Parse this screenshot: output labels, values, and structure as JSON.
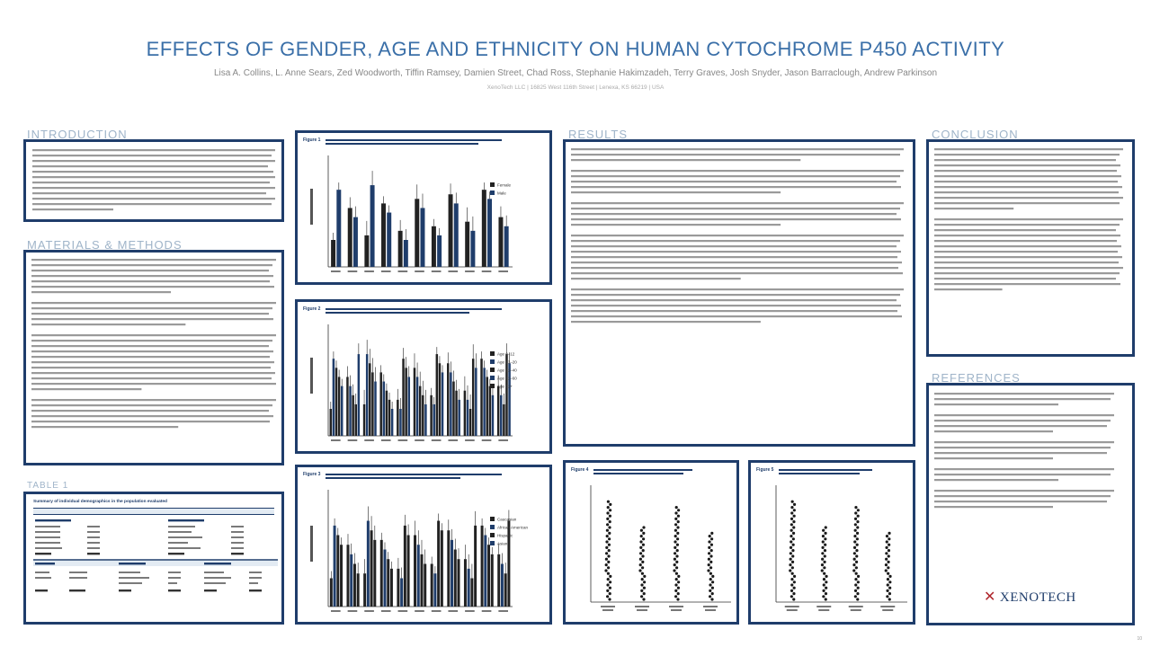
{
  "poster": {
    "title": "EFFECTS OF GENDER, AGE AND ETHNICITY ON HUMAN CYTOCHROME P450 ACTIVITY",
    "authors": "Lisa A. Collins, L. Anne Sears, Zed Woodworth, Tiffin Ramsey, Damien Street, Chad Ross, Stephanie Hakimzadeh, Terry Graves, Josh Snyder, Jason Barraclough, Andrew Parkinson",
    "affiliation": "XenoTech LLC  |  16825 West 116th Street  |  Lenexa, KS 66219  |  USA"
  },
  "sections": {
    "introduction": "INTRODUCTION",
    "methods": "MATERIALS & METHODS",
    "table": "TABLE 1",
    "results": "RESULTS",
    "conclusion": "CONCLUSION",
    "references": "REFERENCES"
  },
  "figures": {
    "fig1": {
      "label": "Figure 1",
      "legend": [
        "Female",
        "Male"
      ]
    },
    "fig2": {
      "label": "Figure 2",
      "legend": [
        "Age 0–12",
        "Age 13–20",
        "Age 21–40",
        "Age 41–60",
        "Age 61+"
      ]
    },
    "fig3": {
      "label": "Figure 3",
      "legend": [
        "Caucasian",
        "African American",
        "Hispanic",
        "Asian"
      ]
    },
    "fig4": {
      "label": "Figure 4"
    },
    "fig5": {
      "label": "Figure 5"
    }
  },
  "table1": {
    "title": "Summary of individual demographics in the population evaluated",
    "col_head_left": "Age Groups",
    "col_head_right": "Ethnic Groups",
    "gender_head": "Gender",
    "tobacco_head": "Tobacco Use",
    "alcohol_head": "Alcohol Use"
  },
  "logo": {
    "name": "XENOTECH",
    "mark": "✕"
  },
  "page_number": "10"
}
